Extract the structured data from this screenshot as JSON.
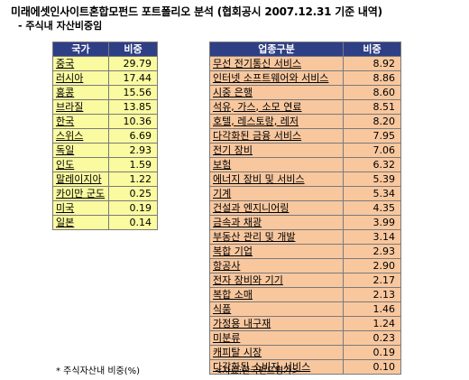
{
  "title": "미래에셋인사이트혼합모펀드 포트폴리오 분석 (협회공시 2007.12.31 기준 내역)",
  "subtitle": "- 주식내 자산비중임",
  "country_table": {
    "headers": [
      "국가",
      "비중"
    ],
    "rows": [
      {
        "name": "중국",
        "value": "29.79"
      },
      {
        "name": "러시아",
        "value": "17.44"
      },
      {
        "name": "홍콩",
        "value": "15.56"
      },
      {
        "name": "브라질",
        "value": "13.85"
      },
      {
        "name": "한국",
        "value": "10.36"
      },
      {
        "name": "스위스",
        "value": "6.69"
      },
      {
        "name": "독일",
        "value": "2.93"
      },
      {
        "name": "인도",
        "value": "1.59"
      },
      {
        "name": "말레이지아",
        "value": "1.22"
      },
      {
        "name": "카이만 군도",
        "value": "0.25"
      },
      {
        "name": "미국",
        "value": "0.19"
      },
      {
        "name": "일본",
        "value": "0.14"
      }
    ]
  },
  "industry_table": {
    "headers": [
      "업종구분",
      "비중"
    ],
    "rows": [
      {
        "name": "무선 전기통신 서비스",
        "value": "8.92"
      },
      {
        "name": "인터넷 소프트웨어와 서비스",
        "value": "8.86"
      },
      {
        "name": "시중 은행",
        "value": "8.60"
      },
      {
        "name": "석유, 가스, 소모 연료",
        "value": "8.51"
      },
      {
        "name": "호텔, 레스토랑, 레저",
        "value": "8.20"
      },
      {
        "name": "다각화된 금융 서비스",
        "value": "7.95"
      },
      {
        "name": "전기 장비",
        "value": "7.06"
      },
      {
        "name": "보험",
        "value": "6.32"
      },
      {
        "name": "에너지 장비 및 서비스",
        "value": "5.39"
      },
      {
        "name": "기계",
        "value": "5.34"
      },
      {
        "name": "건설과 엔지니어링",
        "value": "4.35"
      },
      {
        "name": "금속과 채광",
        "value": "3.99"
      },
      {
        "name": "부동산 관리 및 개발",
        "value": "3.14"
      },
      {
        "name": "복합 기업",
        "value": "2.93"
      },
      {
        "name": "항공사",
        "value": "2.90"
      },
      {
        "name": "전자 장비와 기기",
        "value": "2.17"
      },
      {
        "name": "복합 소매",
        "value": "2.13"
      },
      {
        "name": "식품",
        "value": "1.46"
      },
      {
        "name": "가정용 내구재",
        "value": "1.24"
      },
      {
        "name": "미분류",
        "value": "0.23"
      },
      {
        "name": "캐피탈 시장",
        "value": "0.19"
      },
      {
        "name": "다각화된 소비자 서비스",
        "value": "0.10"
      }
    ]
  },
  "footnote": "* 주식자산내 비중(%)",
  "source": "<자료:한국펀드평가>"
}
